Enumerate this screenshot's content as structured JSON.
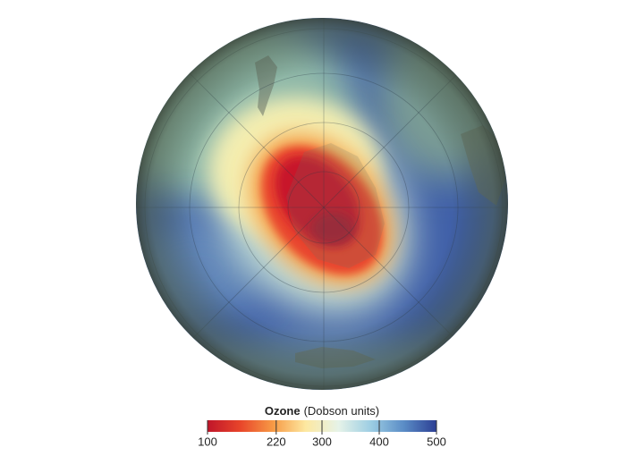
{
  "legend": {
    "title": "Ozone",
    "subtitle": "(Dobson units)",
    "range": [
      100,
      500
    ],
    "ticks": [
      100,
      220,
      300,
      400,
      500
    ],
    "colors": [
      "#c0152a",
      "#e8452a",
      "#f79a45",
      "#fde8a0",
      "#e6f3e8",
      "#9ccde3",
      "#5a8cc6",
      "#2c3f94"
    ]
  }
}
